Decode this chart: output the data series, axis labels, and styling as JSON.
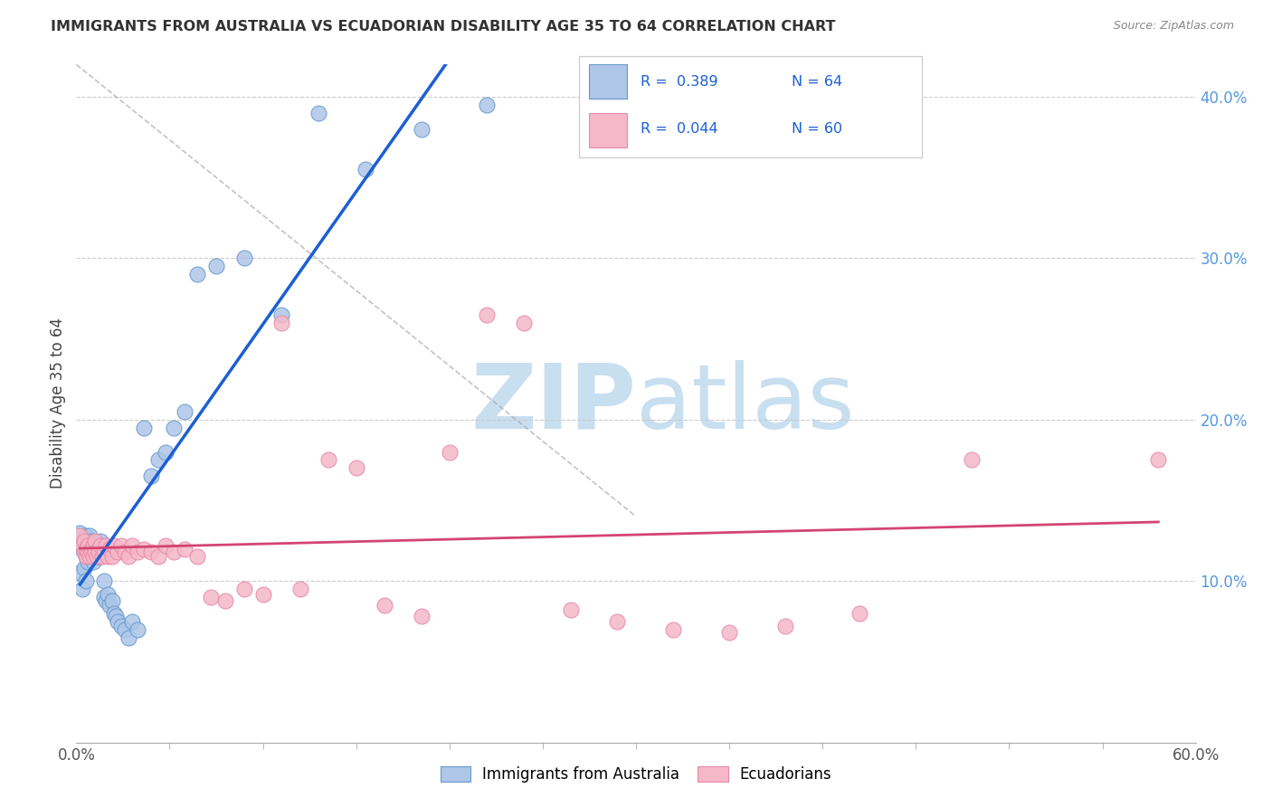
{
  "title": "IMMIGRANTS FROM AUSTRALIA VS ECUADORIAN DISABILITY AGE 35 TO 64 CORRELATION CHART",
  "source": "Source: ZipAtlas.com",
  "ylabel": "Disability Age 35 to 64",
  "xlim": [
    0.0,
    0.6
  ],
  "ylim": [
    0.0,
    0.42
  ],
  "xtick_vals": [
    0.0,
    0.6
  ],
  "xtick_labels": [
    "0.0%",
    "60.0%"
  ],
  "yticks_right": [
    0.1,
    0.2,
    0.3,
    0.4
  ],
  "ytick_labels_right": [
    "10.0%",
    "20.0%",
    "30.0%",
    "40.0%"
  ],
  "legend_label_blue": "Immigrants from Australia",
  "legend_label_pink": "Ecuadorians",
  "R_blue": 0.389,
  "N_blue": 64,
  "R_pink": 0.044,
  "N_pink": 60,
  "scatter_blue_x": [
    0.002,
    0.002,
    0.003,
    0.003,
    0.004,
    0.004,
    0.004,
    0.005,
    0.005,
    0.005,
    0.005,
    0.006,
    0.006,
    0.006,
    0.006,
    0.007,
    0.007,
    0.007,
    0.008,
    0.008,
    0.008,
    0.008,
    0.009,
    0.009,
    0.009,
    0.009,
    0.01,
    0.01,
    0.01,
    0.011,
    0.011,
    0.012,
    0.012,
    0.013,
    0.013,
    0.014,
    0.015,
    0.015,
    0.016,
    0.017,
    0.018,
    0.019,
    0.02,
    0.021,
    0.022,
    0.024,
    0.026,
    0.028,
    0.03,
    0.033,
    0.036,
    0.04,
    0.044,
    0.048,
    0.052,
    0.058,
    0.065,
    0.075,
    0.09,
    0.11,
    0.13,
    0.155,
    0.185,
    0.22
  ],
  "scatter_blue_y": [
    0.13,
    0.105,
    0.12,
    0.095,
    0.125,
    0.118,
    0.108,
    0.128,
    0.115,
    0.122,
    0.1,
    0.12,
    0.115,
    0.125,
    0.112,
    0.118,
    0.128,
    0.122,
    0.115,
    0.12,
    0.118,
    0.125,
    0.115,
    0.122,
    0.118,
    0.112,
    0.115,
    0.122,
    0.118,
    0.12,
    0.115,
    0.118,
    0.122,
    0.115,
    0.125,
    0.12,
    0.1,
    0.09,
    0.088,
    0.092,
    0.085,
    0.088,
    0.08,
    0.078,
    0.075,
    0.072,
    0.07,
    0.065,
    0.075,
    0.07,
    0.195,
    0.165,
    0.175,
    0.18,
    0.195,
    0.205,
    0.29,
    0.295,
    0.3,
    0.265,
    0.39,
    0.355,
    0.38,
    0.395
  ],
  "scatter_pink_x": [
    0.002,
    0.003,
    0.004,
    0.004,
    0.005,
    0.005,
    0.006,
    0.006,
    0.007,
    0.008,
    0.008,
    0.009,
    0.009,
    0.01,
    0.01,
    0.011,
    0.012,
    0.012,
    0.013,
    0.014,
    0.015,
    0.016,
    0.017,
    0.018,
    0.019,
    0.02,
    0.022,
    0.024,
    0.026,
    0.028,
    0.03,
    0.033,
    0.036,
    0.04,
    0.044,
    0.048,
    0.052,
    0.058,
    0.065,
    0.072,
    0.08,
    0.09,
    0.1,
    0.11,
    0.12,
    0.135,
    0.15,
    0.165,
    0.185,
    0.2,
    0.22,
    0.24,
    0.265,
    0.29,
    0.32,
    0.35,
    0.38,
    0.42,
    0.48,
    0.58
  ],
  "scatter_pink_y": [
    0.128,
    0.122,
    0.118,
    0.125,
    0.115,
    0.12,
    0.118,
    0.122,
    0.115,
    0.12,
    0.118,
    0.115,
    0.122,
    0.118,
    0.125,
    0.115,
    0.12,
    0.118,
    0.122,
    0.115,
    0.118,
    0.122,
    0.115,
    0.12,
    0.115,
    0.122,
    0.118,
    0.122,
    0.118,
    0.115,
    0.122,
    0.118,
    0.12,
    0.118,
    0.115,
    0.122,
    0.118,
    0.12,
    0.115,
    0.09,
    0.088,
    0.095,
    0.092,
    0.26,
    0.095,
    0.175,
    0.17,
    0.085,
    0.078,
    0.18,
    0.265,
    0.26,
    0.082,
    0.075,
    0.07,
    0.068,
    0.072,
    0.08,
    0.175,
    0.175
  ],
  "trendline_blue_color": "#1a5fd4",
  "trendline_pink_color": "#d44472",
  "trendline_gray_color": "#aaaaaa",
  "dot_blue_color": "#aec6e8",
  "dot_pink_color": "#f4b8c8",
  "dot_blue_edge": "#6699cc",
  "dot_pink_edge": "#e888a8",
  "background_color": "#ffffff",
  "watermark_zip": "ZIP",
  "watermark_atlas": "atlas",
  "watermark_color": "#c8dff0",
  "grid_color": "#cccccc",
  "grid_style": "--"
}
